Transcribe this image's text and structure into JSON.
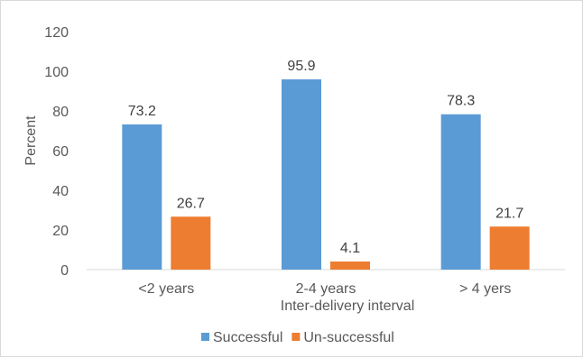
{
  "chart_data": {
    "type": "bar",
    "title": "",
    "xlabel": "Inter-delivery interval",
    "ylabel": "Percent",
    "categories": [
      "<2 years",
      "2-4 years",
      "> 4 yers"
    ],
    "series": [
      {
        "name": "Successful",
        "color": "#5b9bd5",
        "values": [
          73.2,
          95.9,
          78.3
        ]
      },
      {
        "name": "Un-successful",
        "color": "#ed7d31",
        "values": [
          26.7,
          4.1,
          21.7
        ]
      }
    ],
    "ylim": [
      0,
      120
    ],
    "yticks": [
      0,
      20,
      40,
      60,
      80,
      100,
      120
    ],
    "grid": false,
    "legend_position": "bottom"
  }
}
